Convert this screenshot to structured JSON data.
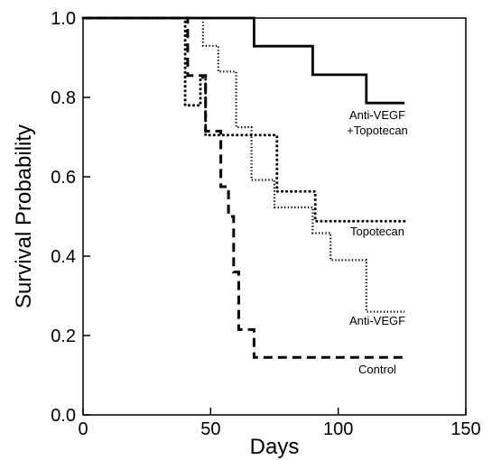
{
  "chart_data": {
    "type": "line",
    "step": true,
    "title": "",
    "xlabel": "Days",
    "ylabel": "Survival Probability",
    "xlim": [
      0,
      150
    ],
    "ylim": [
      0,
      1
    ],
    "xticks": [
      "0",
      "50",
      "100",
      "150"
    ],
    "yticks": [
      "0.0",
      "0.2",
      "0.4",
      "0.6",
      "0.8",
      "1.0"
    ],
    "grid": false,
    "series": [
      {
        "name": "Anti-VEGF +Topotecan",
        "label_lines": [
          "Anti-VEGF",
          "+Topotecan"
        ],
        "line_style": "solid",
        "x": [
          0,
          67,
          67,
          90,
          90,
          111,
          111,
          126
        ],
        "y": [
          1.0,
          1.0,
          0.929,
          0.929,
          0.857,
          0.857,
          0.786,
          0.786
        ]
      },
      {
        "name": "Topotecan",
        "label_lines": [
          "Topotecan"
        ],
        "line_style": "dotted",
        "x": [
          0,
          40,
          40,
          46,
          46,
          48,
          48,
          76,
          76,
          91,
          91,
          126
        ],
        "y": [
          1.0,
          1.0,
          0.78,
          0.78,
          0.85,
          0.85,
          0.705,
          0.705,
          0.563,
          0.563,
          0.488,
          0.488
        ]
      },
      {
        "name": "Anti-VEGF",
        "label_lines": [
          "Anti-VEGF"
        ],
        "line_style": "dotted-fine",
        "x": [
          0,
          47,
          47,
          53,
          53,
          60,
          60,
          66,
          66,
          75,
          75,
          90,
          90,
          97,
          97,
          111,
          111,
          126
        ],
        "y": [
          1.0,
          1.0,
          0.93,
          0.93,
          0.865,
          0.865,
          0.725,
          0.725,
          0.592,
          0.592,
          0.523,
          0.523,
          0.458,
          0.458,
          0.39,
          0.39,
          0.26,
          0.26
        ]
      },
      {
        "name": "Control",
        "label_lines": [
          "Control"
        ],
        "line_style": "dashed",
        "x": [
          0,
          41,
          41,
          48,
          48,
          54,
          54,
          57,
          57,
          59,
          59,
          61,
          61,
          67,
          67,
          70,
          70,
          126
        ],
        "y": [
          1.0,
          1.0,
          0.855,
          0.855,
          0.715,
          0.715,
          0.575,
          0.575,
          0.5,
          0.5,
          0.36,
          0.36,
          0.215,
          0.215,
          0.145,
          0.145,
          0.145,
          0.145
        ]
      }
    ]
  }
}
